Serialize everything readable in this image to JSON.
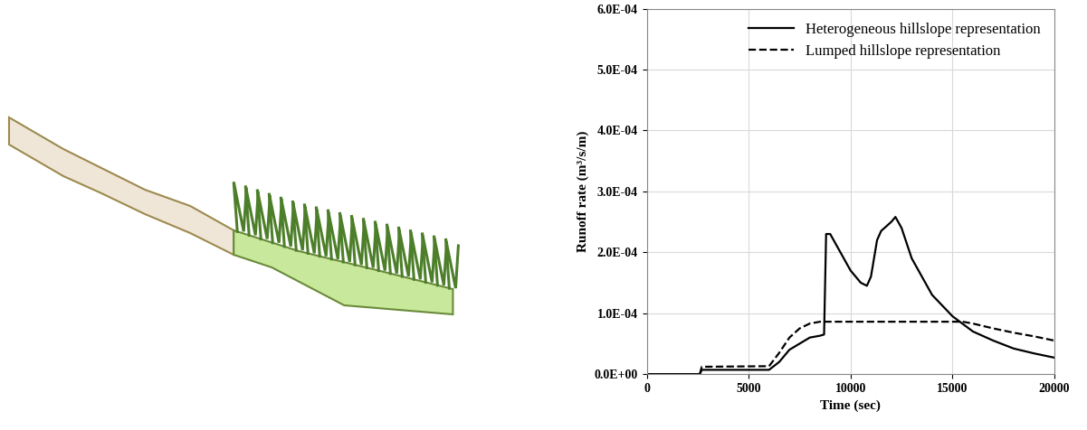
{
  "chart_data": {
    "type": "line",
    "xlabel": "Time (sec)",
    "ylabel": "Runoff rate (m³/s/m)",
    "xlim": [
      0,
      20000
    ],
    "xticks": [
      0,
      5000,
      10000,
      15000,
      20000
    ],
    "ylim": [
      0,
      0.0006
    ],
    "yticks": [
      {
        "value": 0,
        "label": "0.0E+00"
      },
      {
        "value": 0.0001,
        "label": "1.0E-04"
      },
      {
        "value": 0.0002,
        "label": "2.0E-04"
      },
      {
        "value": 0.0003,
        "label": "3.0E-04"
      },
      {
        "value": 0.0004,
        "label": "4.0E-04"
      },
      {
        "value": 0.0005,
        "label": "5.0E-04"
      },
      {
        "value": 0.0006,
        "label": "6.0E-04"
      }
    ],
    "grid": true,
    "legend": "upper right",
    "series": [
      {
        "name": "Heterogeneous hillslope representation",
        "color": "#000000",
        "line_style": "solid",
        "x": [
          0,
          2600,
          2700,
          6000,
          6500,
          7000,
          7500,
          8000,
          8500,
          8700,
          8800,
          9000,
          9500,
          10000,
          10500,
          10800,
          11000,
          11300,
          11500,
          12000,
          12200,
          12500,
          13000,
          14000,
          15000,
          16000,
          17000,
          18000,
          19000,
          20000
        ],
        "values": [
          0,
          0,
          7e-06,
          7e-06,
          2e-05,
          4e-05,
          5e-05,
          6e-05,
          6.3e-05,
          6.5e-05,
          0.00023,
          0.00023,
          0.0002,
          0.00017,
          0.00015,
          0.000145,
          0.00016,
          0.00022,
          0.000235,
          0.00025,
          0.000258,
          0.00024,
          0.00019,
          0.00013,
          9.5e-05,
          7e-05,
          5.5e-05,
          4.2e-05,
          3.4e-05,
          2.7e-05
        ]
      },
      {
        "name": "Lumped hillslope representation",
        "color": "#000000",
        "line_style": "dashed",
        "x": [
          0,
          2600,
          2700,
          6000,
          6500,
          7000,
          7500,
          8000,
          8500,
          15500,
          16000,
          17000,
          18000,
          19000,
          20000
        ],
        "values": [
          0,
          0,
          1.2e-05,
          1.3e-05,
          3.5e-05,
          6e-05,
          7.5e-05,
          8.3e-05,
          8.6e-05,
          8.6e-05,
          8.3e-05,
          7.5e-05,
          6.8e-05,
          6.2e-05,
          5.5e-05
        ]
      }
    ]
  }
}
